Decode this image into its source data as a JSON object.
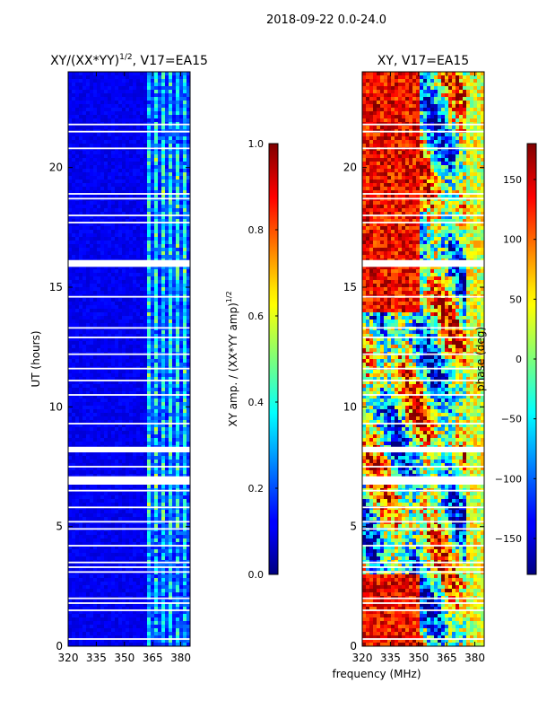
{
  "suptitle": "2018-09-22 0.0-24.0",
  "shared": {
    "xlabel": "frequency (MHz)"
  },
  "chart_data": [
    {
      "type": "heatmap",
      "title_main": "XY/(XX*YY)",
      "title_sup": "1/2",
      "title_tail": ", V17=EA15",
      "xlabel": "",
      "ylabel": "UT (hours)",
      "xlim": [
        320,
        385
      ],
      "ylim": [
        0,
        24
      ],
      "xticks": [
        320,
        335,
        350,
        365,
        380
      ],
      "yticks": [
        0,
        5,
        10,
        15,
        20
      ],
      "colorbar": {
        "label_main": "XY amp. / (XX*YY amp)",
        "label_sup": "1/2",
        "range": [
          0.0,
          1.0
        ],
        "ticks": [
          "0.0",
          "0.2",
          "0.4",
          "0.6",
          "0.8",
          "1.0"
        ],
        "colormap": "jet"
      },
      "gaps_hours": [
        0.3,
        1.5,
        1.8,
        2.0,
        3.1,
        3.3,
        3.5,
        4.2,
        4.9,
        5.2,
        5.8,
        6.5,
        6.9,
        7.5,
        8.3,
        9.3,
        10.5,
        11.1,
        11.6,
        12.2,
        12.9,
        13.3,
        14.6,
        15.9,
        16.1,
        17.7,
        18.0,
        18.7,
        18.9,
        20.8,
        21.5,
        21.8
      ],
      "wide_gaps_hours": [
        [
          6.75,
          7.1
        ],
        [
          8.1,
          8.3
        ],
        [
          15.85,
          16.1
        ]
      ]
    },
    {
      "type": "heatmap",
      "title_main": "XY, V17=EA15",
      "title_sup": "",
      "title_tail": "",
      "xlabel": "frequency (MHz)",
      "ylabel": "",
      "xlim": [
        320,
        385
      ],
      "ylim": [
        0,
        24
      ],
      "xticks": [
        320,
        335,
        350,
        365,
        380
      ],
      "yticks": [
        0,
        5,
        10,
        15,
        20
      ],
      "colorbar": {
        "label_main": "phase (deg)",
        "label_sup": "",
        "range": [
          -180,
          180
        ],
        "ticks": [
          "−150",
          "−100",
          "−50",
          "0",
          "50",
          "100",
          "150"
        ],
        "tick_values": [
          -150,
          -100,
          -50,
          0,
          50,
          100,
          150
        ],
        "colormap": "jet"
      },
      "gaps_hours": [
        0.3,
        1.5,
        1.8,
        2.0,
        3.1,
        3.3,
        3.5,
        4.2,
        4.9,
        5.2,
        5.8,
        6.5,
        6.9,
        7.5,
        8.3,
        9.3,
        10.5,
        11.1,
        11.6,
        12.2,
        12.9,
        13.3,
        14.6,
        15.9,
        16.1,
        17.7,
        18.0,
        18.7,
        18.9,
        20.8,
        21.5,
        21.8
      ],
      "wide_gaps_hours": [
        [
          6.75,
          7.1
        ],
        [
          8.1,
          8.3
        ],
        [
          15.85,
          16.1
        ]
      ]
    }
  ],
  "colors": {
    "axis": "#000000",
    "background": "#ffffff",
    "gap": "#ffffff"
  }
}
